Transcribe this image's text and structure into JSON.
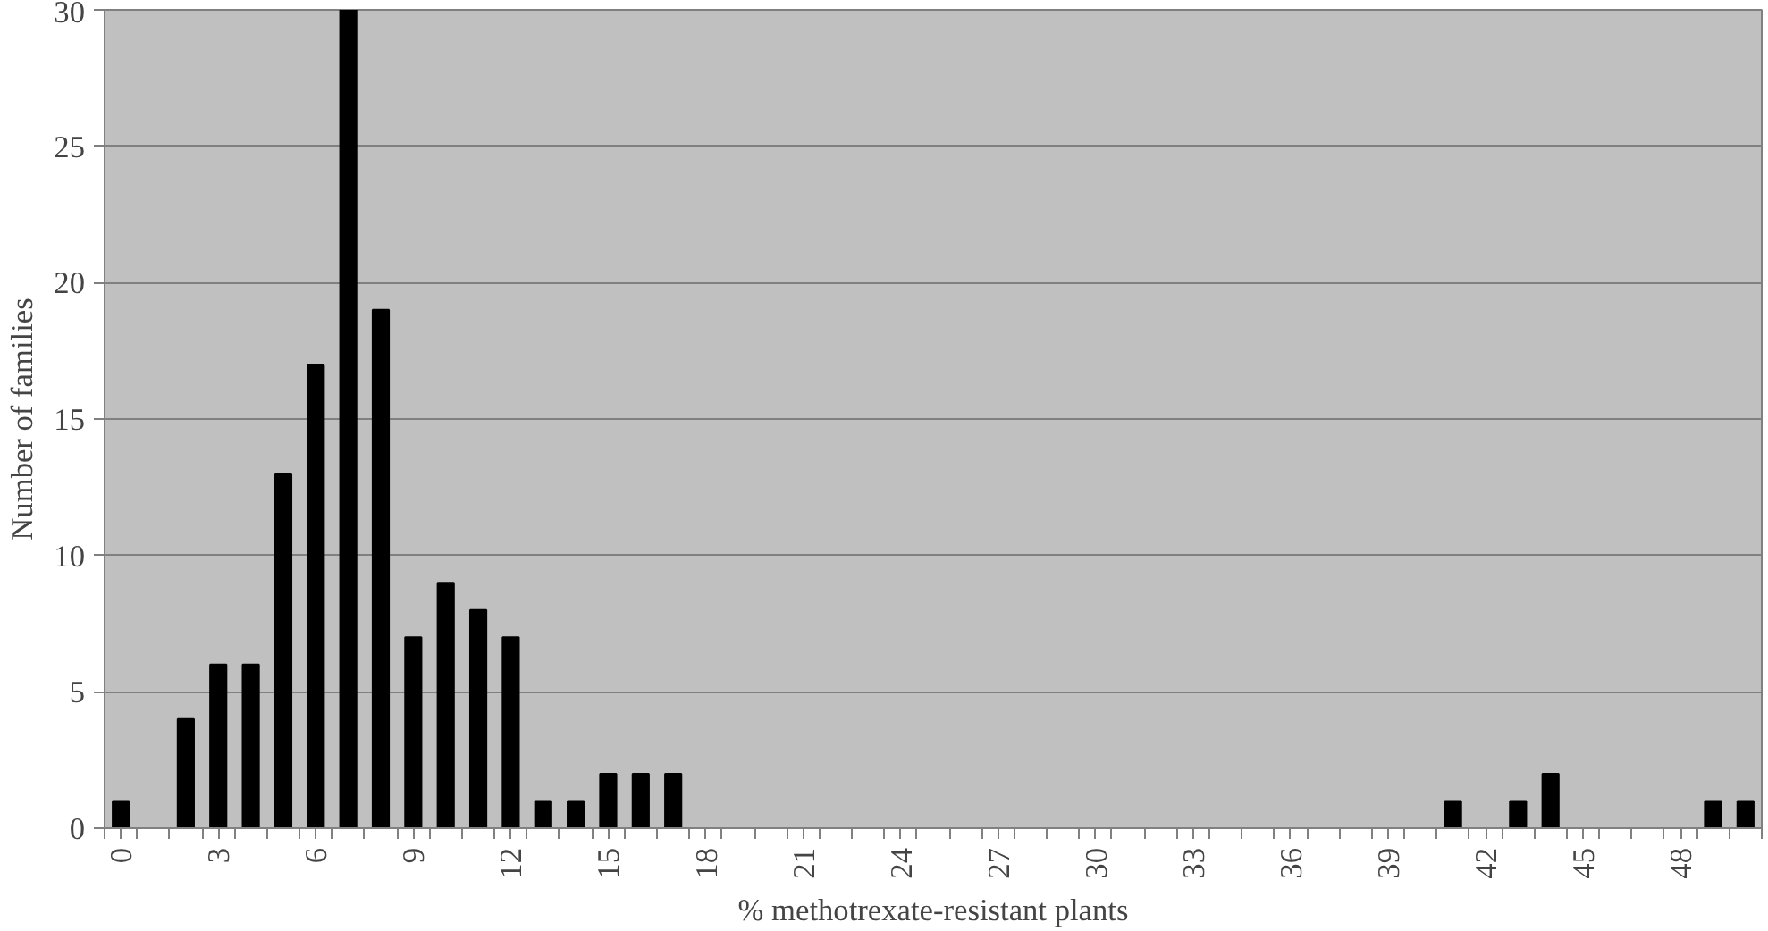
{
  "chart_data": {
    "type": "bar",
    "xlabel": "% methotrexate-resistant plants",
    "ylabel": "Number of families",
    "categories": [
      "0",
      null,
      null,
      "3",
      null,
      null,
      "6",
      null,
      null,
      "9",
      null,
      null,
      "12",
      null,
      null,
      "15",
      null,
      null,
      "18",
      null,
      null,
      "21",
      null,
      null,
      "24",
      null,
      null,
      "27",
      null,
      null,
      "30",
      null,
      null,
      "33",
      null,
      null,
      "36",
      null,
      null,
      "39",
      null,
      null,
      "42",
      null,
      null,
      "45",
      null,
      null,
      "48",
      null,
      null
    ],
    "values": [
      1,
      0,
      4,
      6,
      6,
      13,
      17,
      30,
      19,
      7,
      9,
      8,
      7,
      1,
      1,
      2,
      2,
      2,
      0,
      0,
      0,
      0,
      0,
      0,
      0,
      0,
      0,
      0,
      0,
      0,
      0,
      0,
      0,
      0,
      0,
      0,
      0,
      0,
      0,
      0,
      0,
      1,
      0,
      1,
      2,
      0,
      0,
      0,
      0,
      1,
      1
    ],
    "color": "#000000",
    "ylim": [
      0,
      30
    ],
    "yticks": [
      0,
      5,
      10,
      15,
      20,
      25,
      30
    ],
    "grid": "y"
  }
}
